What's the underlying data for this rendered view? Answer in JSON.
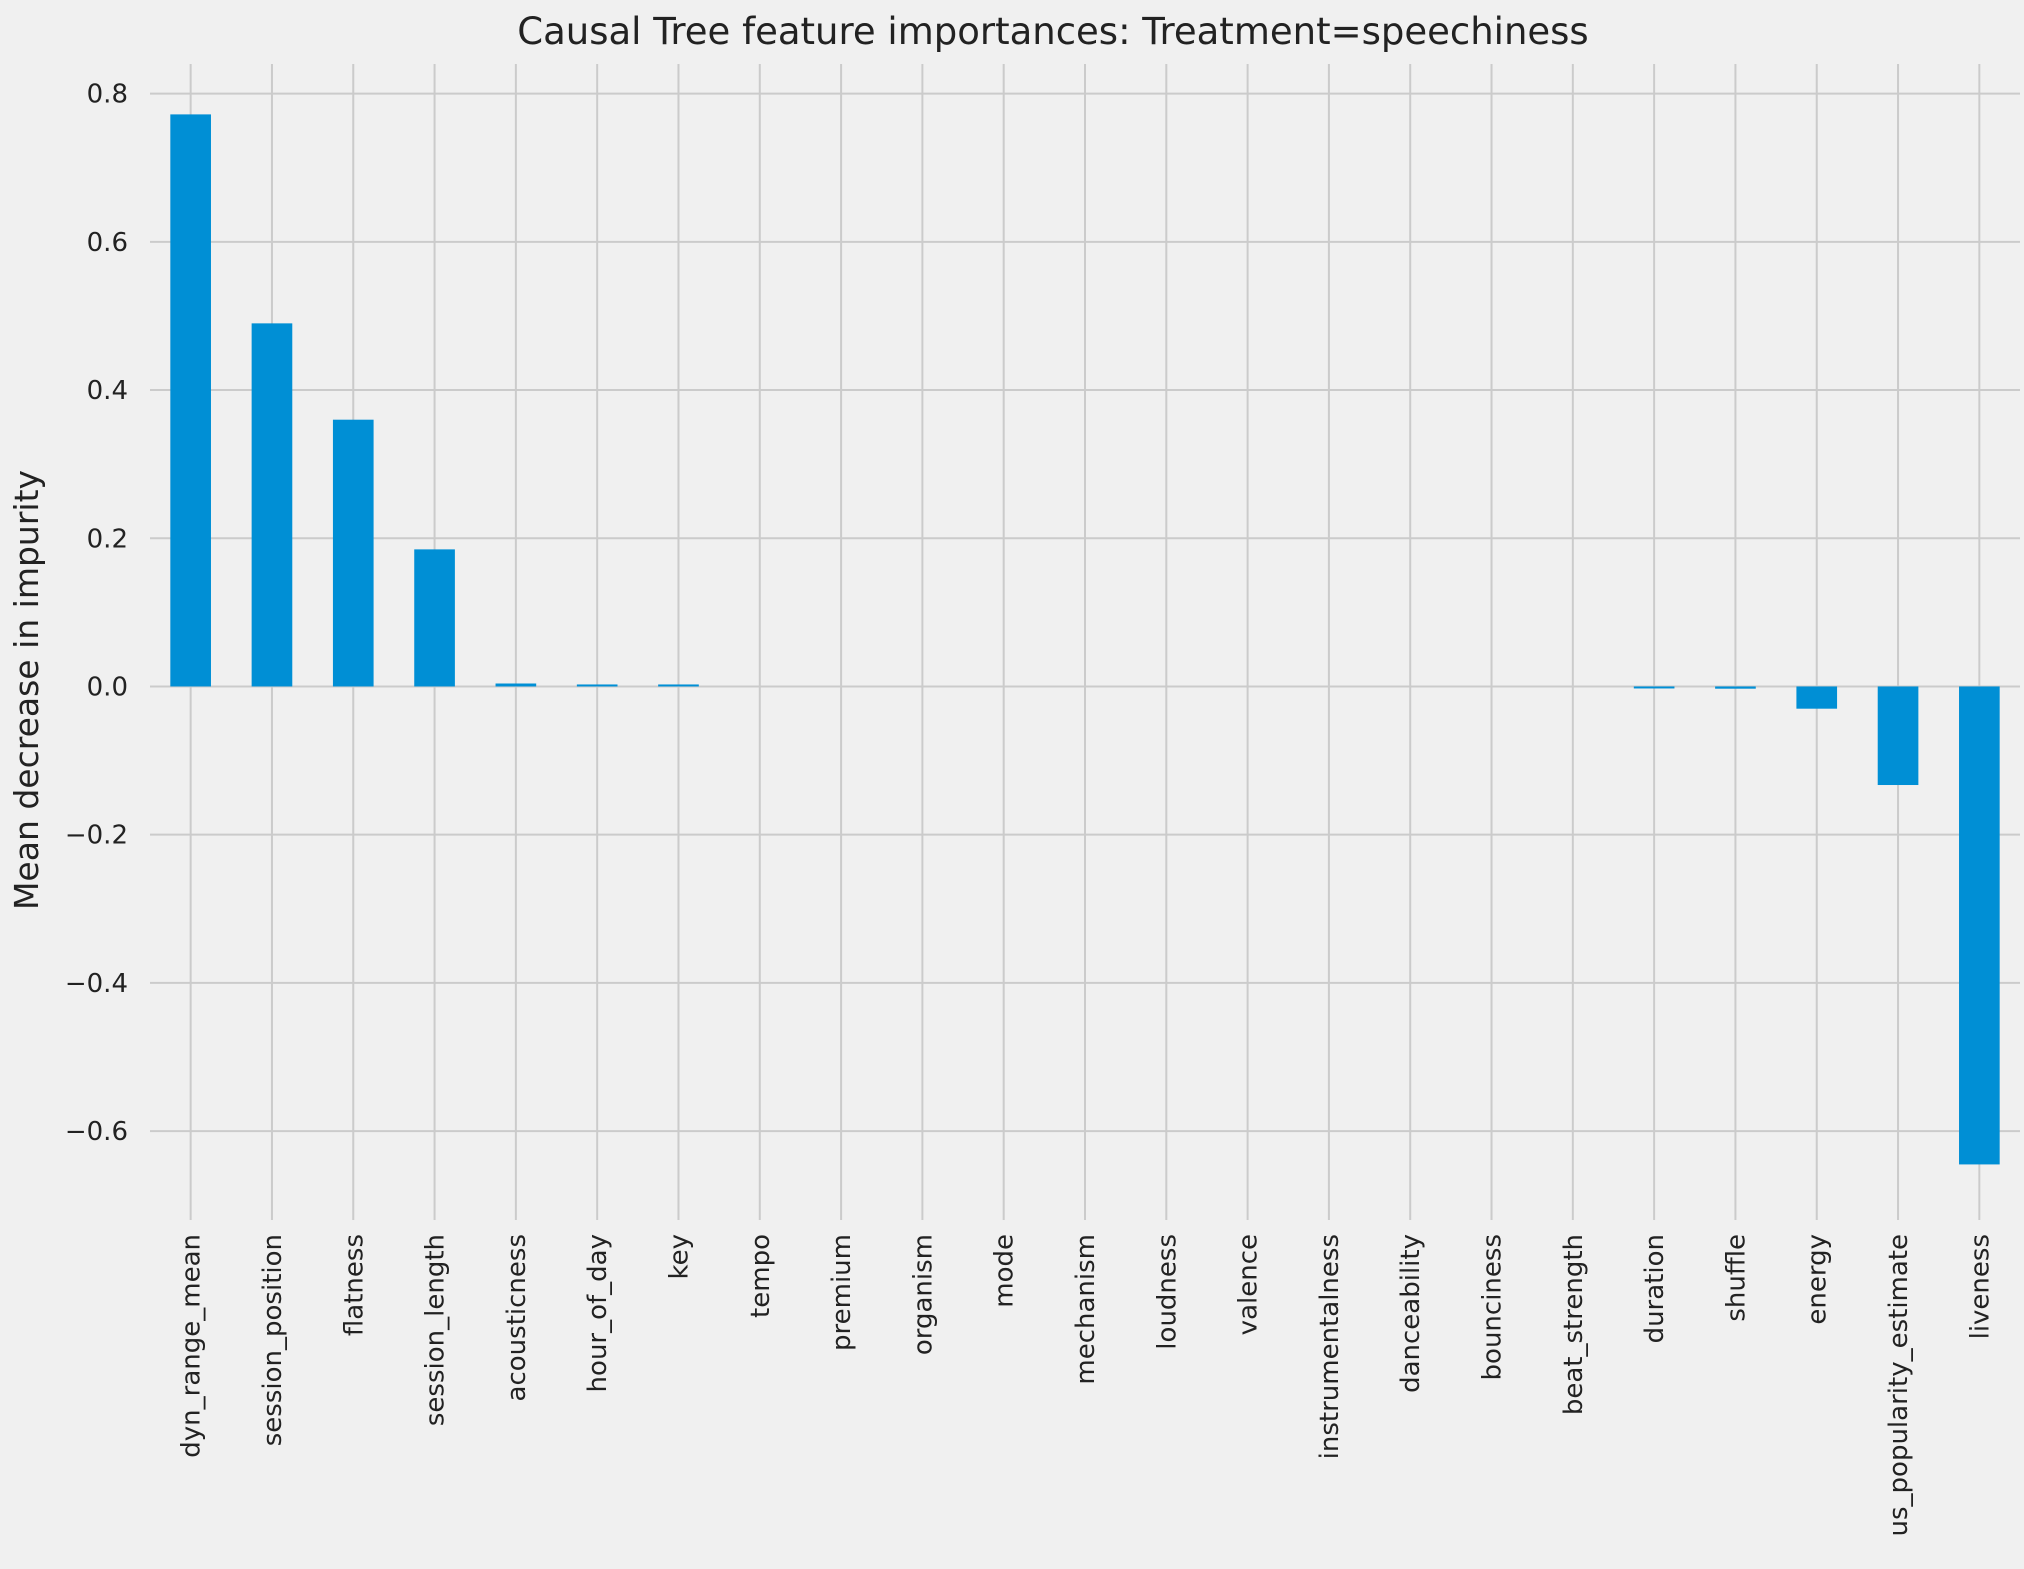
{
  "chart_data": {
    "type": "bar",
    "title": "Causal Tree feature importances: Treatment=speechiness",
    "xlabel": "",
    "ylabel": "Mean decrease in impurity",
    "categories": [
      "dyn_range_mean",
      "session_position",
      "flatness",
      "session_length",
      "acousticness",
      "hour_of_day",
      "key",
      "tempo",
      "premium",
      "organism",
      "mode",
      "mechanism",
      "loudness",
      "valence",
      "instrumentalness",
      "danceability",
      "bounciness",
      "beat_strength",
      "duration",
      "shuffle",
      "energy",
      "us_popularity_estimate",
      "liveness"
    ],
    "values": [
      0.772,
      0.49,
      0.36,
      0.185,
      0.004,
      0.002,
      0.001,
      0.0,
      0.0,
      0.0,
      0.0,
      0.0,
      0.0,
      0.0,
      0.0,
      0.0,
      0.0,
      0.0,
      -0.001,
      -0.003,
      -0.03,
      -0.133,
      -0.645
    ],
    "ylim": [
      -0.72,
      0.84
    ],
    "yticks": [
      0.8,
      0.6,
      0.4,
      0.2,
      0.0,
      -0.2,
      -0.4,
      -0.6
    ],
    "ytick_labels": [
      "0.8",
      "0.6",
      "0.4",
      "0.2",
      "0.0",
      "−0.2",
      "−0.4",
      "−0.6"
    ],
    "grid": true,
    "legend": "none",
    "colors": {
      "bar": "#008fd5",
      "background": "#f0f0f0",
      "grid": "#cbcbcb",
      "text": "#222222"
    }
  }
}
